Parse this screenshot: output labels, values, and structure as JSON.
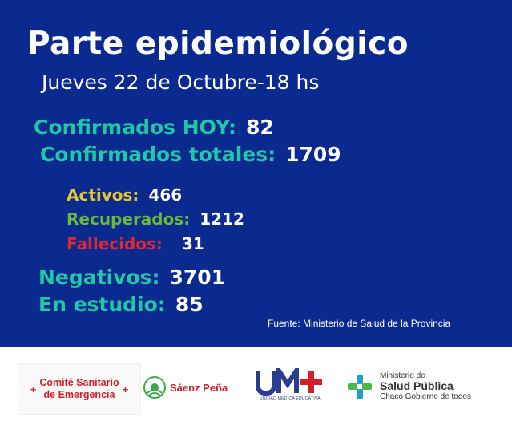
{
  "title": "Parte epidemiológico",
  "date": "Jueves  22 de Octubre-18 hs",
  "stats": {
    "confirmados_hoy": {
      "label": "Confirmados HOY:",
      "value": "82",
      "color": "#1fc9a6"
    },
    "confirmados_totales": {
      "label": "Confirmados totales:",
      "value": "1709",
      "color": "#1fc9a6"
    },
    "activos": {
      "label": "Activos:",
      "value": "466",
      "color": "#e4c72e"
    },
    "recuperados": {
      "label": "Recuperados:",
      "value": "1212",
      "color": "#6bb83a"
    },
    "fallecidos": {
      "label": "Fallecidos:",
      "value": "31",
      "color": "#e0262f"
    },
    "negativos": {
      "label": "Negativos:",
      "value": "3701",
      "color": "#1fc9a6"
    },
    "en_estudio": {
      "label": "En estudio:",
      "value": "85",
      "color": "#1fc9a6"
    }
  },
  "source": "Fuente: Ministerio de Salud de la Provincia",
  "logos": {
    "comite": {
      "line1": "Comité Sanitario",
      "line2": "de Emergencia"
    },
    "saenz": {
      "name": "Sáenz Peña"
    },
    "ume": {
      "name": "UNIDAD MÉDICA EDUCATIVA"
    },
    "ministerio": {
      "line1": "Ministerio de",
      "line2": "Salud Pública",
      "line3": "Chaco Gobierno de todos"
    }
  },
  "colors": {
    "background": "#0a2a8f",
    "teal": "#1fc9a6",
    "yellow": "#e4c72e",
    "green": "#6bb83a",
    "red": "#e0262f"
  }
}
